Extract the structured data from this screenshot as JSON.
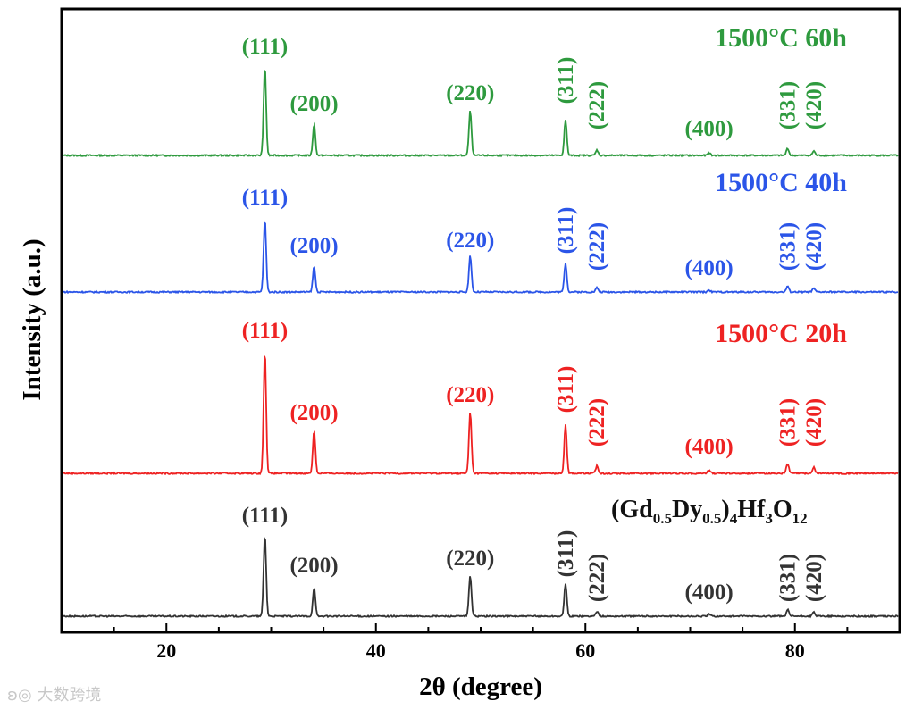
{
  "chart_data": {
    "type": "line",
    "xlabel": "2θ (degree)",
    "ylabel": "Intensity (a.u.)",
    "xlim": [
      10,
      90
    ],
    "xticks": [
      20,
      40,
      60,
      80
    ],
    "grid": false,
    "compound": {
      "base1": "(Gd",
      "sub1": "0.5",
      "base2": "Dy",
      "sub2": "0.5",
      "base3": ")",
      "sub3": "4",
      "base4": "Hf",
      "sub4": "3",
      "base5": "O",
      "sub5": "12"
    },
    "peaks": [
      {
        "hkl": "(111)",
        "x": 29.4,
        "rel": 1.0
      },
      {
        "hkl": "(200)",
        "x": 34.1,
        "rel": 0.35
      },
      {
        "hkl": "(220)",
        "x": 49.0,
        "rel": 0.5
      },
      {
        "hkl": "(311)",
        "x": 58.1,
        "rel": 0.4
      },
      {
        "hkl": "(222)",
        "x": 61.1,
        "rel": 0.06
      },
      {
        "hkl": "(400)",
        "x": 71.8,
        "rel": 0.03
      },
      {
        "hkl": "(331)",
        "x": 79.3,
        "rel": 0.08
      },
      {
        "hkl": "(420)",
        "x": 81.8,
        "rel": 0.05
      }
    ],
    "series": [
      {
        "name": "1500°C 60h",
        "color": "#2e9a3e"
      },
      {
        "name": "1500°C 40h",
        "color": "#2b55e8"
      },
      {
        "name": "1500°C 20h",
        "color": "#ee2222"
      },
      {
        "name": "(Gd0.5Dy0.5)4Hf3O12",
        "color": "#333333"
      }
    ]
  },
  "watermark": "大数跨境"
}
